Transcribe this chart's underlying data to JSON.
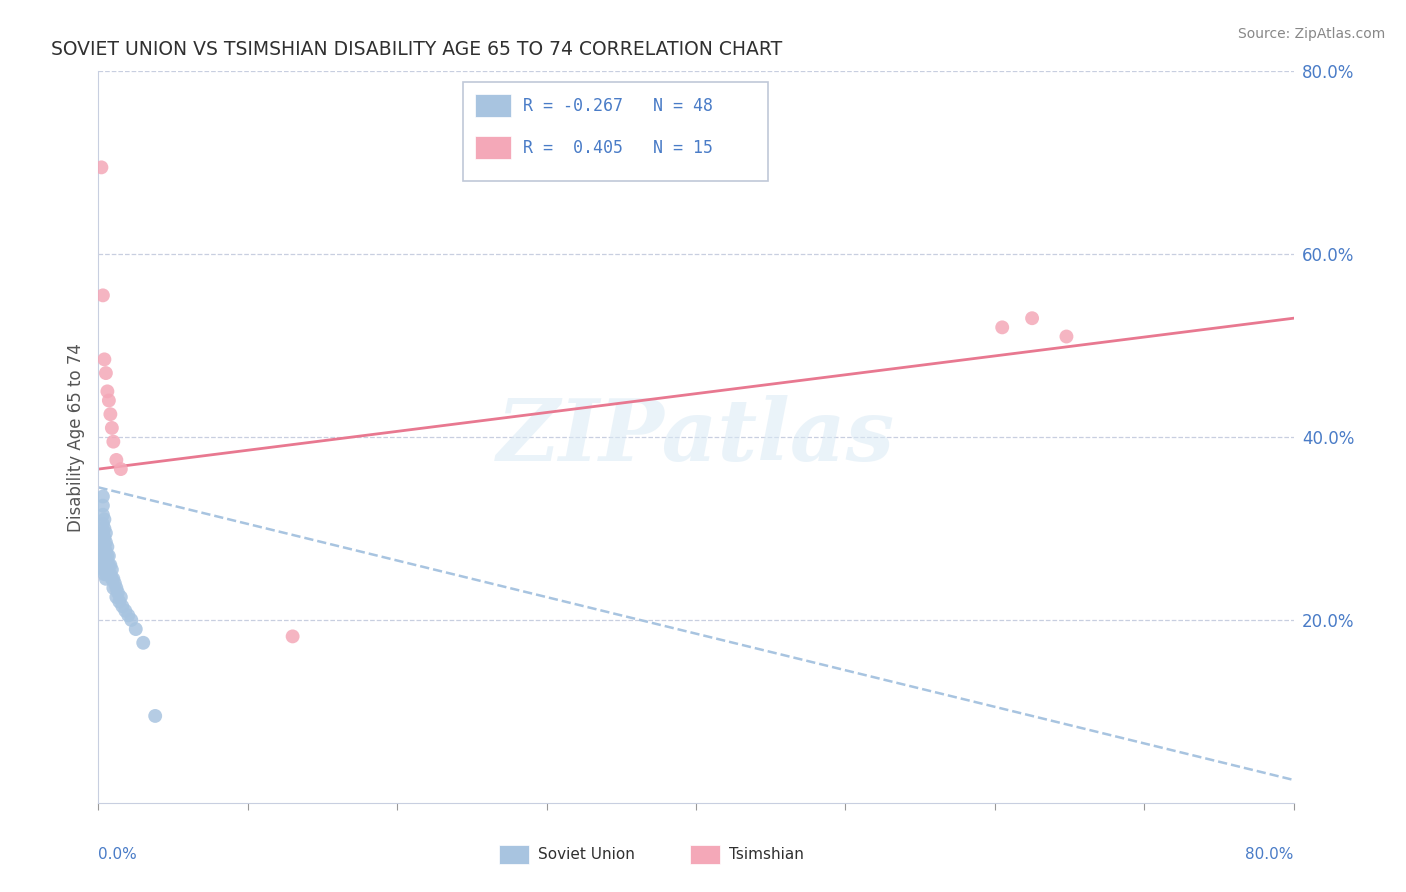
{
  "title": "SOVIET UNION VS TSIMSHIAN DISABILITY AGE 65 TO 74 CORRELATION CHART",
  "source": "Source: ZipAtlas.com",
  "ylabel": "Disability Age 65 to 74",
  "legend_r_soviet": "R = -0.267",
  "legend_n_soviet": "N = 48",
  "legend_r_tsimshian": "R =  0.405",
  "legend_n_tsimshian": "N = 15",
  "soviet_color": "#a8c4e0",
  "tsimshian_color": "#f4a8b8",
  "soviet_line_color": "#a8c4e0",
  "tsimshian_line_color": "#e87890",
  "text_color": "#4a7cc7",
  "background_color": "#ffffff",
  "watermark_text": "ZIPatlas",
  "xmin": 0.0,
  "xmax": 0.8,
  "ymin": 0.0,
  "ymax": 0.8,
  "yticks": [
    0.0,
    0.2,
    0.4,
    0.6,
    0.8
  ],
  "ytick_labels": [
    "",
    "20.0%",
    "40.0%",
    "60.0%",
    "80.0%"
  ],
  "soviet_scatter_x": [
    0.003,
    0.003,
    0.003,
    0.003,
    0.003,
    0.003,
    0.003,
    0.003,
    0.003,
    0.004,
    0.004,
    0.004,
    0.004,
    0.004,
    0.004,
    0.004,
    0.005,
    0.005,
    0.005,
    0.005,
    0.005,
    0.005,
    0.006,
    0.006,
    0.006,
    0.006,
    0.007,
    0.007,
    0.007,
    0.008,
    0.008,
    0.009,
    0.009,
    0.01,
    0.01,
    0.011,
    0.012,
    0.012,
    0.013,
    0.014,
    0.015,
    0.016,
    0.018,
    0.02,
    0.022,
    0.025,
    0.03,
    0.038
  ],
  "soviet_scatter_y": [
    0.335,
    0.325,
    0.315,
    0.305,
    0.295,
    0.285,
    0.275,
    0.265,
    0.255,
    0.31,
    0.3,
    0.29,
    0.28,
    0.27,
    0.26,
    0.25,
    0.295,
    0.285,
    0.275,
    0.265,
    0.255,
    0.245,
    0.28,
    0.27,
    0.26,
    0.25,
    0.27,
    0.26,
    0.25,
    0.26,
    0.25,
    0.255,
    0.245,
    0.245,
    0.235,
    0.24,
    0.235,
    0.225,
    0.23,
    0.22,
    0.225,
    0.215,
    0.21,
    0.205,
    0.2,
    0.19,
    0.175,
    0.095
  ],
  "tsimshian_scatter_x": [
    0.002,
    0.003,
    0.004,
    0.005,
    0.006,
    0.007,
    0.008,
    0.009,
    0.01,
    0.012,
    0.015,
    0.13,
    0.605,
    0.625,
    0.648
  ],
  "tsimshian_scatter_y": [
    0.695,
    0.555,
    0.485,
    0.47,
    0.45,
    0.44,
    0.425,
    0.41,
    0.395,
    0.375,
    0.365,
    0.182,
    0.52,
    0.53,
    0.51
  ],
  "soviet_trendline_x": [
    0.0,
    0.8
  ],
  "soviet_trendline_y": [
    0.345,
    0.025
  ],
  "tsimshian_trendline_x": [
    0.0,
    0.8
  ],
  "tsimshian_trendline_y": [
    0.365,
    0.53
  ]
}
